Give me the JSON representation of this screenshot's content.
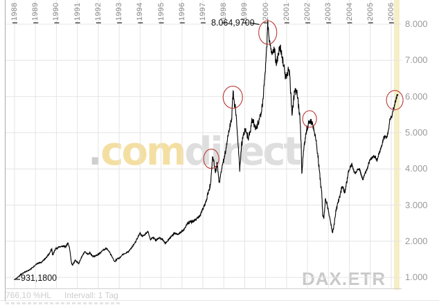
{
  "symbol_label": "DAX.ETR",
  "watermark": {
    "dot": ".",
    "com": "com",
    "direct": "direct"
  },
  "footer": {
    "change_text": "766,10 %HL",
    "interval_text": "Intervall: 1 Tag"
  },
  "annotations": {
    "peak_label": "8.064,9700",
    "start_label": "931,1800"
  },
  "colors": {
    "line": "#000000",
    "grid": "#e4e4e4",
    "axis_border": "#ababab",
    "chart_bottom": "#cfcfcf",
    "tick": "#3c3c3c",
    "band": "#f5eec6",
    "circle": "#b83832",
    "watermark_dot": "#cfcfcf",
    "watermark_com": "#f4dfa3",
    "watermark_direct": "#dedede",
    "symbol_gray": "#c9c9c9"
  },
  "chart_data": {
    "type": "line",
    "symbol": "DAX.ETR",
    "interval": "1 Tag",
    "x_axis": {
      "years": [
        "1988",
        "1989",
        "1990",
        "1991",
        "1992",
        "1993",
        "1994",
        "1995",
        "1996",
        "1997",
        "1998",
        "1999",
        "2000",
        "2001",
        "2002",
        "2003",
        "2004",
        "2005",
        "2006"
      ]
    },
    "y_axis": {
      "tick_labels": [
        "8.000",
        "7.000",
        "6.000",
        "5.000",
        "4.000",
        "3.000",
        "2.000",
        "1.000"
      ],
      "tick_values": [
        8000,
        7000,
        6000,
        5000,
        4000,
        3000,
        2000,
        1000
      ]
    },
    "high_point": {
      "label": "8.064,9700",
      "value": 8064.97,
      "year": 2000.1
    },
    "start_point": {
      "label": "931,1800",
      "value": 931.18,
      "year": 1988.0
    },
    "highlight_circles": [
      {
        "year": 1997.4,
        "value": 4280,
        "rx": 11,
        "ry": 14
      },
      {
        "year": 1998.43,
        "value": 5980,
        "rx": 14,
        "ry": 16
      },
      {
        "year": 2000.1,
        "value": 7770,
        "rx": 13,
        "ry": 17
      },
      {
        "year": 2002.1,
        "value": 5380,
        "rx": 10,
        "ry": 12
      },
      {
        "year": 2006.17,
        "value": 5900,
        "rx": 12,
        "ry": 14
      }
    ],
    "series": [
      {
        "name": "DAX.ETR",
        "points": [
          [
            1988.0,
            940
          ],
          [
            1988.15,
            1000
          ],
          [
            1988.3,
            1080
          ],
          [
            1988.5,
            1150
          ],
          [
            1988.7,
            1200
          ],
          [
            1988.9,
            1290
          ],
          [
            1989.1,
            1390
          ],
          [
            1989.3,
            1420
          ],
          [
            1989.5,
            1540
          ],
          [
            1989.65,
            1650
          ],
          [
            1989.78,
            1790
          ],
          [
            1989.82,
            1620
          ],
          [
            1989.95,
            1780
          ],
          [
            1990.1,
            1830
          ],
          [
            1990.3,
            1870
          ],
          [
            1990.45,
            1850
          ],
          [
            1990.55,
            1960
          ],
          [
            1990.63,
            1800
          ],
          [
            1990.72,
            1400
          ],
          [
            1990.78,
            1340
          ],
          [
            1990.9,
            1480
          ],
          [
            1991.0,
            1420
          ],
          [
            1991.07,
            1380
          ],
          [
            1991.2,
            1560
          ],
          [
            1991.35,
            1710
          ],
          [
            1991.5,
            1640
          ],
          [
            1991.6,
            1680
          ],
          [
            1991.75,
            1580
          ],
          [
            1991.9,
            1600
          ],
          [
            1992.05,
            1650
          ],
          [
            1992.2,
            1740
          ],
          [
            1992.38,
            1800
          ],
          [
            1992.5,
            1740
          ],
          [
            1992.65,
            1590
          ],
          [
            1992.78,
            1430
          ],
          [
            1992.9,
            1510
          ],
          [
            1993.0,
            1530
          ],
          [
            1993.15,
            1620
          ],
          [
            1993.3,
            1670
          ],
          [
            1993.45,
            1720
          ],
          [
            1993.6,
            1820
          ],
          [
            1993.75,
            1950
          ],
          [
            1993.9,
            2120
          ],
          [
            1994.0,
            2230
          ],
          [
            1994.1,
            2130
          ],
          [
            1994.25,
            2200
          ],
          [
            1994.38,
            2260
          ],
          [
            1994.5,
            2040
          ],
          [
            1994.62,
            2110
          ],
          [
            1994.75,
            2020
          ],
          [
            1994.9,
            2090
          ],
          [
            1995.05,
            2070
          ],
          [
            1995.2,
            1940
          ],
          [
            1995.35,
            2030
          ],
          [
            1995.5,
            2130
          ],
          [
            1995.65,
            2230
          ],
          [
            1995.8,
            2190
          ],
          [
            1995.95,
            2260
          ],
          [
            1996.1,
            2320
          ],
          [
            1996.25,
            2480
          ],
          [
            1996.4,
            2540
          ],
          [
            1996.55,
            2560
          ],
          [
            1996.7,
            2610
          ],
          [
            1996.85,
            2700
          ],
          [
            1997.0,
            2900
          ],
          [
            1997.12,
            3050
          ],
          [
            1997.25,
            3300
          ],
          [
            1997.38,
            3620
          ],
          [
            1997.46,
            4330
          ],
          [
            1997.52,
            4200
          ],
          [
            1997.6,
            3900
          ],
          [
            1997.68,
            4150
          ],
          [
            1997.78,
            3620
          ],
          [
            1997.88,
            3950
          ],
          [
            1998.0,
            4280
          ],
          [
            1998.1,
            4480
          ],
          [
            1998.2,
            4900
          ],
          [
            1998.3,
            5200
          ],
          [
            1998.38,
            5450
          ],
          [
            1998.44,
            6130
          ],
          [
            1998.5,
            5800
          ],
          [
            1998.58,
            5550
          ],
          [
            1998.65,
            5000
          ],
          [
            1998.72,
            4400
          ],
          [
            1998.76,
            3920
          ],
          [
            1998.85,
            4650
          ],
          [
            1998.95,
            4980
          ],
          [
            1999.05,
            5100
          ],
          [
            1999.15,
            4850
          ],
          [
            1999.25,
            5000
          ],
          [
            1999.35,
            5350
          ],
          [
            1999.45,
            5250
          ],
          [
            1999.55,
            5150
          ],
          [
            1999.65,
            5300
          ],
          [
            1999.75,
            5450
          ],
          [
            1999.85,
            5800
          ],
          [
            1999.95,
            6450
          ],
          [
            2000.05,
            7300
          ],
          [
            2000.1,
            8055
          ],
          [
            2000.16,
            7600
          ],
          [
            2000.22,
            7450
          ],
          [
            2000.3,
            7250
          ],
          [
            2000.4,
            7350
          ],
          [
            2000.5,
            6950
          ],
          [
            2000.6,
            7200
          ],
          [
            2000.68,
            7350
          ],
          [
            2000.78,
            7100
          ],
          [
            2000.88,
            6850
          ],
          [
            2000.95,
            6500
          ],
          [
            2001.05,
            6650
          ],
          [
            2001.12,
            6750
          ],
          [
            2001.2,
            6100
          ],
          [
            2001.27,
            5500
          ],
          [
            2001.35,
            6000
          ],
          [
            2001.42,
            6150
          ],
          [
            2001.5,
            6050
          ],
          [
            2001.58,
            5750
          ],
          [
            2001.65,
            5300
          ],
          [
            2001.7,
            4700
          ],
          [
            2001.73,
            3820
          ],
          [
            2001.78,
            4300
          ],
          [
            2001.85,
            4700
          ],
          [
            2001.95,
            5050
          ],
          [
            2002.02,
            5200
          ],
          [
            2002.1,
            5350
          ],
          [
            2002.18,
            5300
          ],
          [
            2002.25,
            5250
          ],
          [
            2002.32,
            5050
          ],
          [
            2002.4,
            4850
          ],
          [
            2002.48,
            4450
          ],
          [
            2002.55,
            4050
          ],
          [
            2002.62,
            3650
          ],
          [
            2002.68,
            3350
          ],
          [
            2002.73,
            2720
          ],
          [
            2002.78,
            2640
          ],
          [
            2002.85,
            3150
          ],
          [
            2002.92,
            3050
          ],
          [
            2003.0,
            2850
          ],
          [
            2003.08,
            2600
          ],
          [
            2003.15,
            2350
          ],
          [
            2003.2,
            2230
          ],
          [
            2003.28,
            2480
          ],
          [
            2003.35,
            2820
          ],
          [
            2003.45,
            3050
          ],
          [
            2003.55,
            3250
          ],
          [
            2003.62,
            3420
          ],
          [
            2003.7,
            3480
          ],
          [
            2003.78,
            3330
          ],
          [
            2003.88,
            3650
          ],
          [
            2003.95,
            3900
          ],
          [
            2004.05,
            4050
          ],
          [
            2004.12,
            4130
          ],
          [
            2004.2,
            3950
          ],
          [
            2004.3,
            3880
          ],
          [
            2004.4,
            3980
          ],
          [
            2004.5,
            3980
          ],
          [
            2004.58,
            3820
          ],
          [
            2004.65,
            3700
          ],
          [
            2004.75,
            3880
          ],
          [
            2004.85,
            3980
          ],
          [
            2004.95,
            4180
          ],
          [
            2005.05,
            4280
          ],
          [
            2005.15,
            4350
          ],
          [
            2005.25,
            4320
          ],
          [
            2005.32,
            4230
          ],
          [
            2005.42,
            4420
          ],
          [
            2005.52,
            4580
          ],
          [
            2005.62,
            4820
          ],
          [
            2005.7,
            4900
          ],
          [
            2005.78,
            4850
          ],
          [
            2005.88,
            5100
          ],
          [
            2005.95,
            5380
          ],
          [
            2006.05,
            5500
          ],
          [
            2006.12,
            5680
          ],
          [
            2006.2,
            5850
          ],
          [
            2006.28,
            6050
          ],
          [
            2006.32,
            6060
          ]
        ]
      }
    ]
  }
}
